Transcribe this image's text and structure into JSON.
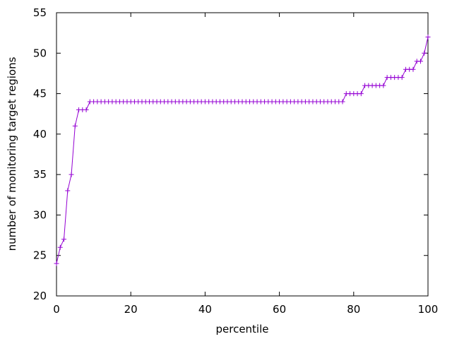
{
  "chart_data": {
    "type": "line",
    "xlabel": "percentile",
    "ylabel": "number of monitoring target regions",
    "x": [
      0,
      1,
      2,
      3,
      4,
      5,
      6,
      7,
      8,
      9,
      10,
      11,
      12,
      13,
      14,
      15,
      16,
      17,
      18,
      19,
      20,
      21,
      22,
      23,
      24,
      25,
      26,
      27,
      28,
      29,
      30,
      31,
      32,
      33,
      34,
      35,
      36,
      37,
      38,
      39,
      40,
      41,
      42,
      43,
      44,
      45,
      46,
      47,
      48,
      49,
      50,
      51,
      52,
      53,
      54,
      55,
      56,
      57,
      58,
      59,
      60,
      61,
      62,
      63,
      64,
      65,
      66,
      67,
      68,
      69,
      70,
      71,
      72,
      73,
      74,
      75,
      76,
      77,
      78,
      79,
      80,
      81,
      82,
      83,
      84,
      85,
      86,
      87,
      88,
      89,
      90,
      91,
      92,
      93,
      94,
      95,
      96,
      97,
      98,
      99,
      100
    ],
    "series": [
      {
        "color": "#9400d3",
        "values": [
          24,
          26,
          27,
          33,
          35,
          41,
          43,
          43,
          43,
          44,
          44,
          44,
          44,
          44,
          44,
          44,
          44,
          44,
          44,
          44,
          44,
          44,
          44,
          44,
          44,
          44,
          44,
          44,
          44,
          44,
          44,
          44,
          44,
          44,
          44,
          44,
          44,
          44,
          44,
          44,
          44,
          44,
          44,
          44,
          44,
          44,
          44,
          44,
          44,
          44,
          44,
          44,
          44,
          44,
          44,
          44,
          44,
          44,
          44,
          44,
          44,
          44,
          44,
          44,
          44,
          44,
          44,
          44,
          44,
          44,
          44,
          44,
          44,
          44,
          44,
          44,
          44,
          44,
          45,
          45,
          45,
          45,
          45,
          46,
          46,
          46,
          46,
          46,
          46,
          47,
          47,
          47,
          47,
          47,
          48,
          48,
          48,
          49,
          49,
          50,
          52
        ]
      }
    ],
    "xlim": [
      0,
      100
    ],
    "xticks": [
      0,
      20,
      40,
      60,
      80,
      100
    ],
    "ylim": [
      20,
      55
    ],
    "yticks": [
      20,
      25,
      30,
      35,
      40,
      45,
      50,
      55
    ]
  }
}
